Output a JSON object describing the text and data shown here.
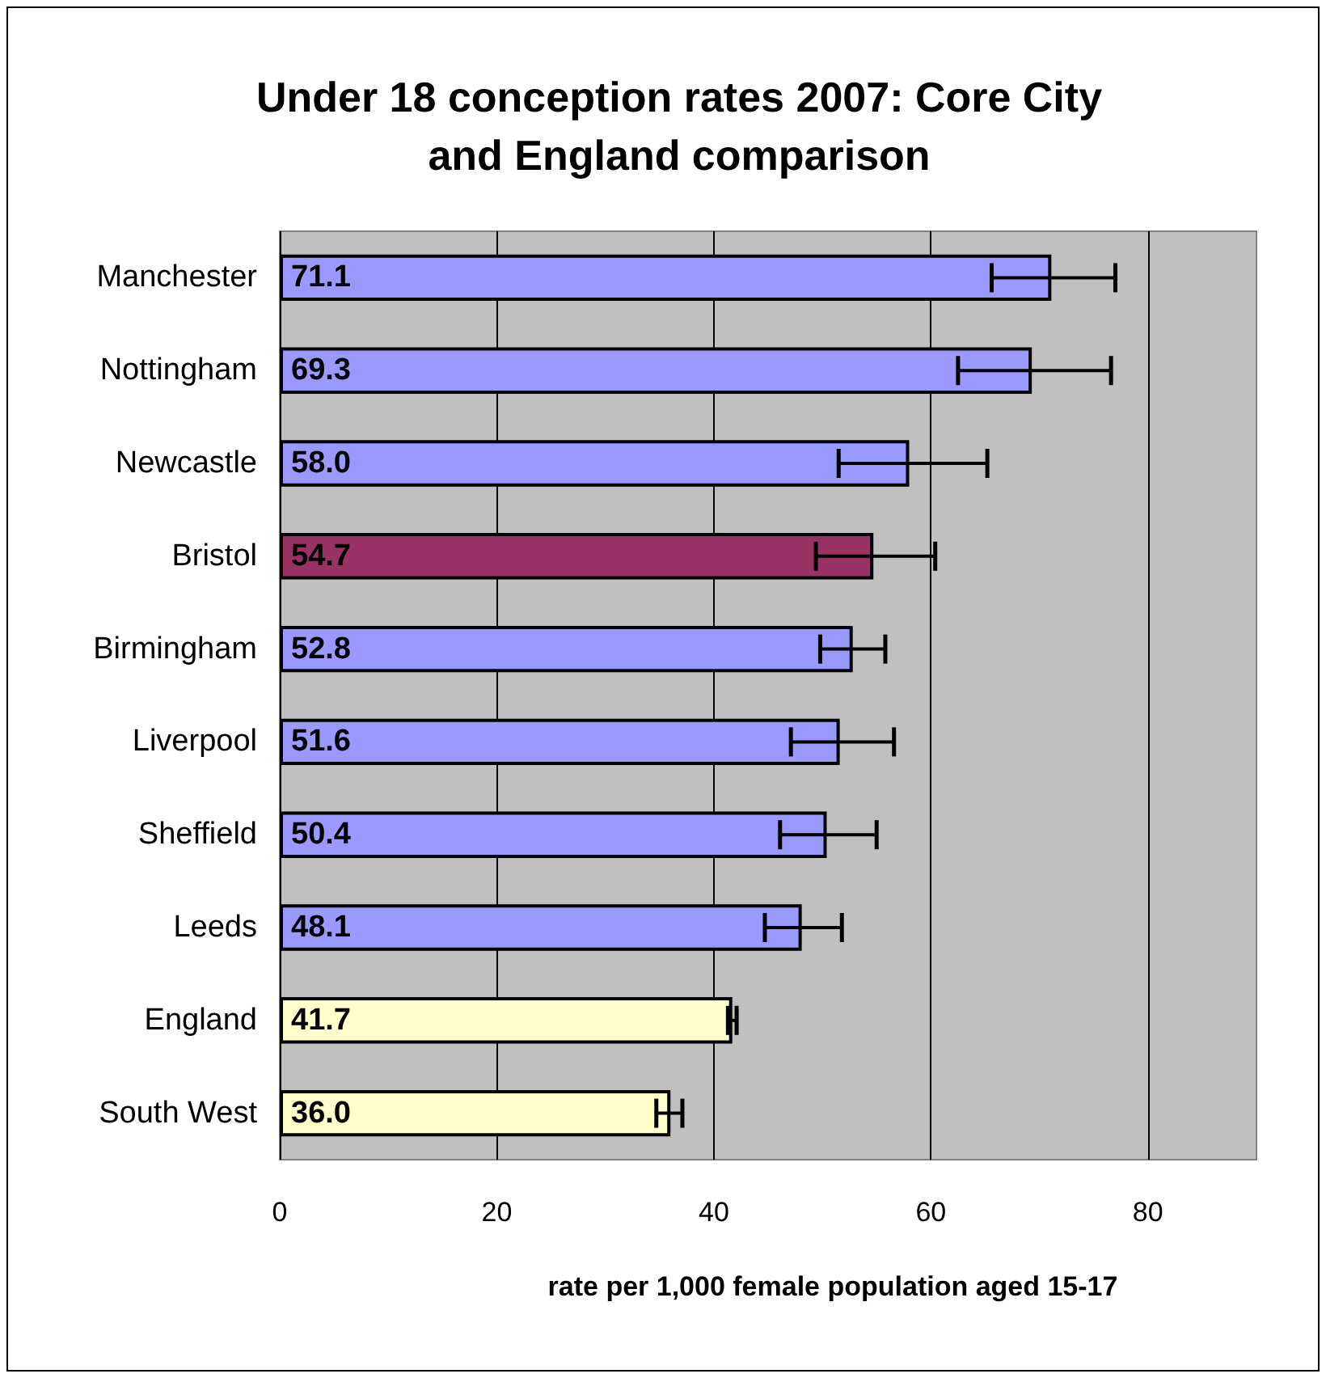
{
  "chart_data": {
    "type": "bar",
    "orientation": "horizontal",
    "title": "Under 18 conception rates 2007: Core City\nand England comparison",
    "xlabel": "rate per 1,000 female population aged 15-17",
    "categories": [
      "Manchester",
      "Nottingham",
      "Newcastle",
      "Bristol",
      "Birmingham",
      "Liverpool",
      "Sheffield",
      "Leeds",
      "England",
      "South West"
    ],
    "values": [
      71.1,
      69.3,
      58.0,
      54.7,
      52.8,
      51.6,
      50.4,
      48.1,
      41.7,
      36.0
    ],
    "colors": [
      "#9999ff",
      "#9999ff",
      "#9999ff",
      "#993366",
      "#9999ff",
      "#9999ff",
      "#9999ff",
      "#9999ff",
      "#ffffcc",
      "#ffffcc"
    ],
    "errors": [
      [
        65.6,
        77.0
      ],
      [
        62.5,
        76.6
      ],
      [
        51.5,
        65.2
      ],
      [
        49.4,
        60.4
      ],
      [
        49.8,
        55.8
      ],
      [
        47.1,
        56.6
      ],
      [
        46.1,
        55.0
      ],
      [
        44.7,
        51.8
      ],
      [
        41.3,
        42.1
      ],
      [
        34.7,
        37.1
      ]
    ],
    "value_labels": [
      "71.1",
      "69.3",
      "58.0",
      "54.7",
      "52.8",
      "51.6",
      "50.4",
      "48.1",
      "41.7",
      "36.0"
    ],
    "xlim": [
      0,
      90
    ],
    "xticks": [
      0,
      20,
      40,
      60,
      80
    ],
    "grid": "x"
  }
}
